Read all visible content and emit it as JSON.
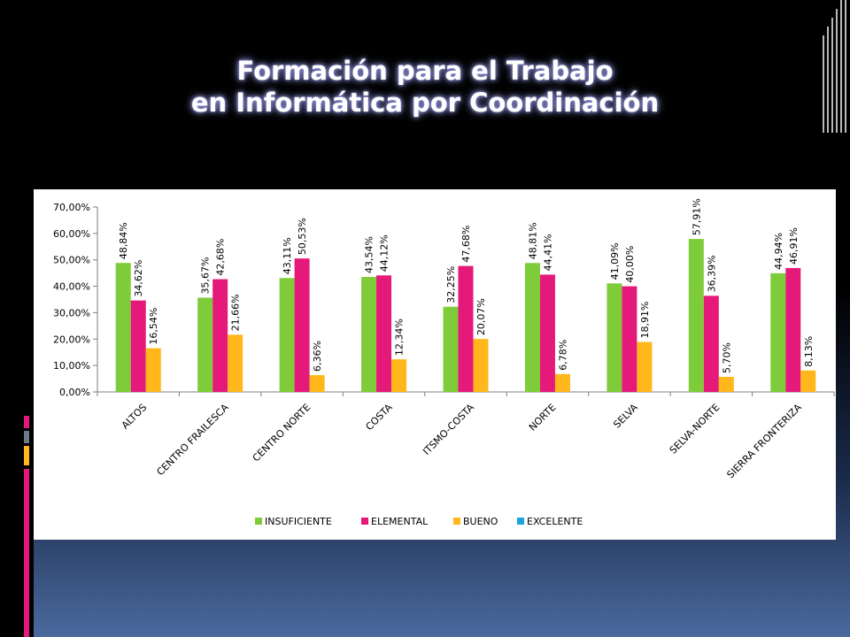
{
  "slide": {
    "title_line1": "Formación para el Trabajo",
    "title_line2": "en Informática por Coordinación"
  },
  "colors": {
    "INSUFICIENTE": "#7fcc3a",
    "ELEMENTAL": "#e5197a",
    "BUENO": "#ffb71b",
    "EXCELENTE": "#1aa3dd",
    "title_glow": "#8a8fd6",
    "accent_pink": "#e5197a",
    "accent_gold": "#ffb71b",
    "accent_gray": "#6c7a89"
  },
  "chart_data": {
    "type": "bar",
    "title": "",
    "xlabel": "",
    "ylabel": "",
    "ylim": [
      0,
      70
    ],
    "yticks": [
      "0,00%",
      "10,00%",
      "20,00%",
      "30,00%",
      "40,00%",
      "50,00%",
      "60,00%",
      "70,00%"
    ],
    "categories": [
      "ALTOS",
      "CENTRO FRAILESCA",
      "CENTRO NORTE",
      "COSTA",
      "ITSMO-COSTA",
      "NORTE",
      "SELVA",
      "SELVA-NORTE",
      "SIERRA FRONTERIZA"
    ],
    "series": [
      {
        "name": "INSUFICIENTE",
        "values": [
          48.84,
          35.67,
          43.11,
          43.54,
          32.25,
          48.81,
          41.09,
          57.91,
          44.94
        ],
        "labels": [
          "48,84%",
          "35,67%",
          "43,11%",
          "43,54%",
          "32,25%",
          "48,81%",
          "41,09%",
          "57,91%",
          "44,94%"
        ]
      },
      {
        "name": "ELEMENTAL",
        "values": [
          34.62,
          42.68,
          50.53,
          44.12,
          47.68,
          44.41,
          40.0,
          36.39,
          46.91
        ],
        "labels": [
          "34,62%",
          "42,68%",
          "50,53%",
          "44,12%",
          "47,68%",
          "44,41%",
          "40,00%",
          "36,39%",
          "46,91%"
        ]
      },
      {
        "name": "BUENO",
        "values": [
          16.54,
          21.66,
          6.36,
          12.34,
          20.07,
          6.78,
          18.91,
          5.7,
          8.13
        ],
        "labels": [
          "16,54%",
          "21,66%",
          "6,36%",
          "12,34%",
          "20,07%",
          "6,78%",
          "18,91%",
          "5,70%",
          "8,13%"
        ]
      },
      {
        "name": "EXCELENTE",
        "values": [
          0,
          0,
          0,
          0,
          0,
          0,
          0,
          0,
          0
        ],
        "labels": []
      }
    ],
    "legend": "bottom",
    "grid": false
  }
}
